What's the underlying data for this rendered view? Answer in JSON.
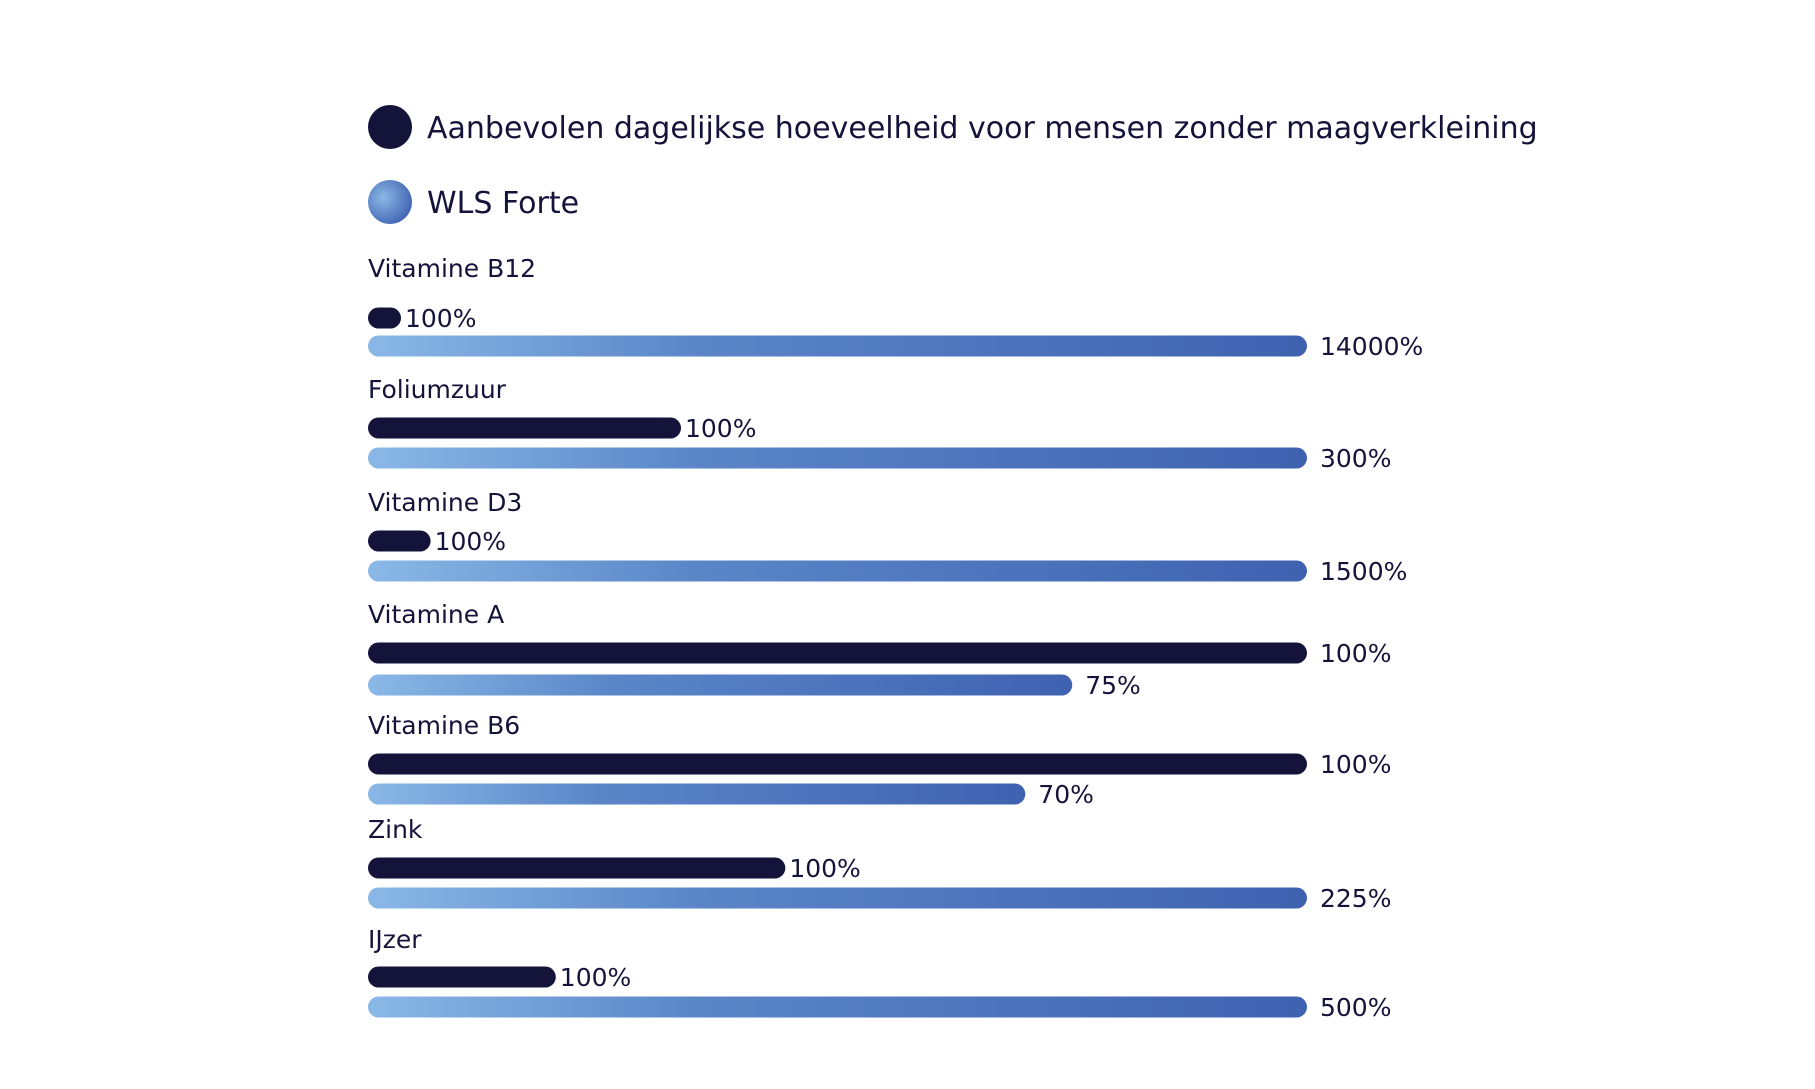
{
  "chart_data": {
    "type": "bar",
    "orientation": "horizontal",
    "title": "",
    "xlabel": "",
    "ylabel": "",
    "grid": false,
    "legend_position": "top-left",
    "categories": [
      "Vitamine B12",
      "Foliumzuur",
      "Vitamine D3",
      "Vitamine A",
      "Vitamine B6",
      "Zink",
      "IJzer"
    ],
    "series": [
      {
        "name": "Aanbevolen dagelijkse hoeveelheid voor mensen zonder maagverkleining",
        "color": "#14133a",
        "values": [
          100,
          100,
          100,
          100,
          100,
          100,
          100
        ],
        "labels": [
          "100%",
          "100%",
          "100%",
          "100%",
          "100%",
          "100%",
          "100%"
        ]
      },
      {
        "name": "WLS Forte",
        "color_start": "#8ab8e6",
        "color_end": "#3f62b0",
        "values": [
          14000,
          300,
          1500,
          75,
          70,
          225,
          500
        ],
        "labels": [
          "14000%",
          "300%",
          "1500%",
          "75%",
          "70%",
          "225%",
          "500%"
        ]
      }
    ]
  }
}
